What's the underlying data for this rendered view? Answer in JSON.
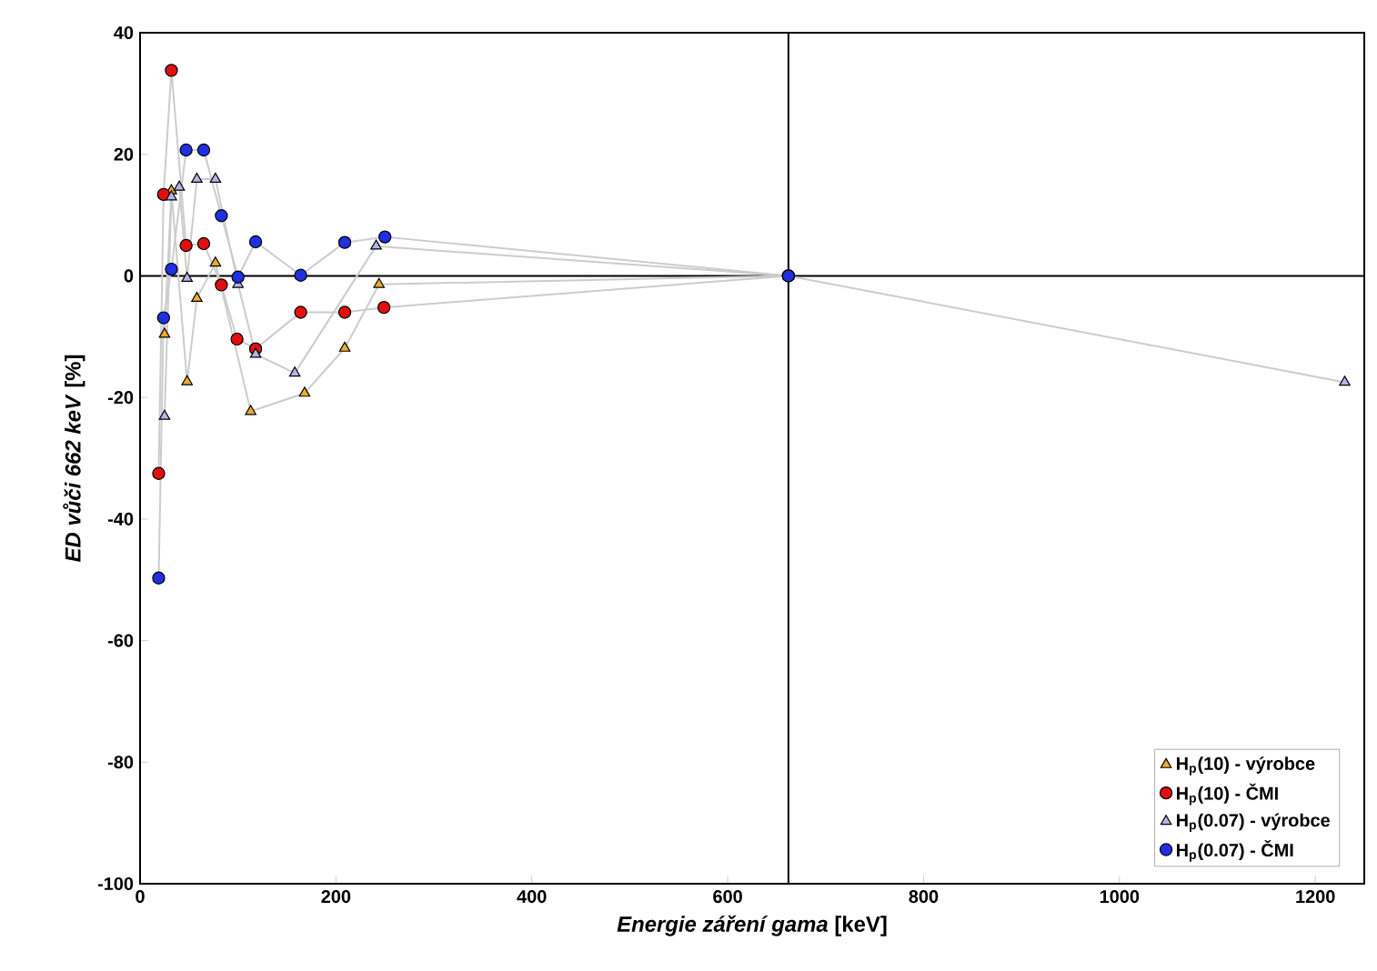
{
  "chart_data": {
    "type": "line",
    "xlabel": "*Energie záření gama* [keV]",
    "ylabel": "*ED vůči 662 keV* [%]",
    "xlim": [
      0,
      1250
    ],
    "ylim": [
      -100,
      40
    ],
    "xticks": [
      0,
      200,
      400,
      600,
      800,
      1000,
      1200
    ],
    "yticks": [
      -100,
      -80,
      -60,
      -40,
      -20,
      0,
      20,
      40
    ],
    "grid": false,
    "legend": "bottom right",
    "ref_lines": [
      {
        "axis": "y",
        "value": 0,
        "color": "#000000"
      },
      {
        "axis": "x",
        "value": 662,
        "color": "#000000"
      }
    ],
    "series": [
      {
        "name": "H$_{p}$(10) - výrobce",
        "color": "#f0a830",
        "marker": "triangle",
        "x": [
          25,
          32,
          48,
          58,
          77,
          113,
          168,
          209,
          244,
          662
        ],
        "values": [
          -9.6,
          14,
          -17.4,
          -3.7,
          2.1,
          -22.3,
          -19.3,
          -11.9,
          -1.4,
          0
        ]
      },
      {
        "name": "H$_{p}$(10) - ČMI",
        "color": "#e01010",
        "marker": "circle",
        "x": [
          19,
          24,
          32,
          47,
          65,
          83,
          99,
          118,
          164,
          209,
          249,
          662
        ],
        "values": [
          -32.5,
          13.4,
          33.8,
          5,
          5.3,
          -1.5,
          -10.4,
          -12,
          -6,
          -6,
          -5.2,
          0
        ]
      },
      {
        "name": "H$_{p}$(0.07) - výrobce",
        "color": "#b4b4ea",
        "marker": "triangle",
        "x": [
          25,
          32,
          40,
          48,
          58,
          77,
          100,
          118,
          158,
          241,
          662,
          1230
        ],
        "values": [
          -23.1,
          13,
          14.6,
          -0.4,
          15.9,
          15.9,
          -1.4,
          -12.9,
          -16,
          4.9,
          0,
          -17.5
        ]
      },
      {
        "name": "H$_{p}$(0.07) - ČMI",
        "color": "#2030e0",
        "marker": "circle",
        "x": [
          19,
          24,
          32,
          47,
          65,
          83,
          100,
          118,
          164,
          209,
          250,
          662
        ],
        "values": [
          -49.7,
          -6.9,
          1.1,
          20.7,
          20.7,
          9.9,
          -0.2,
          5.6,
          0.1,
          5.5,
          6.4,
          0
        ]
      }
    ]
  }
}
